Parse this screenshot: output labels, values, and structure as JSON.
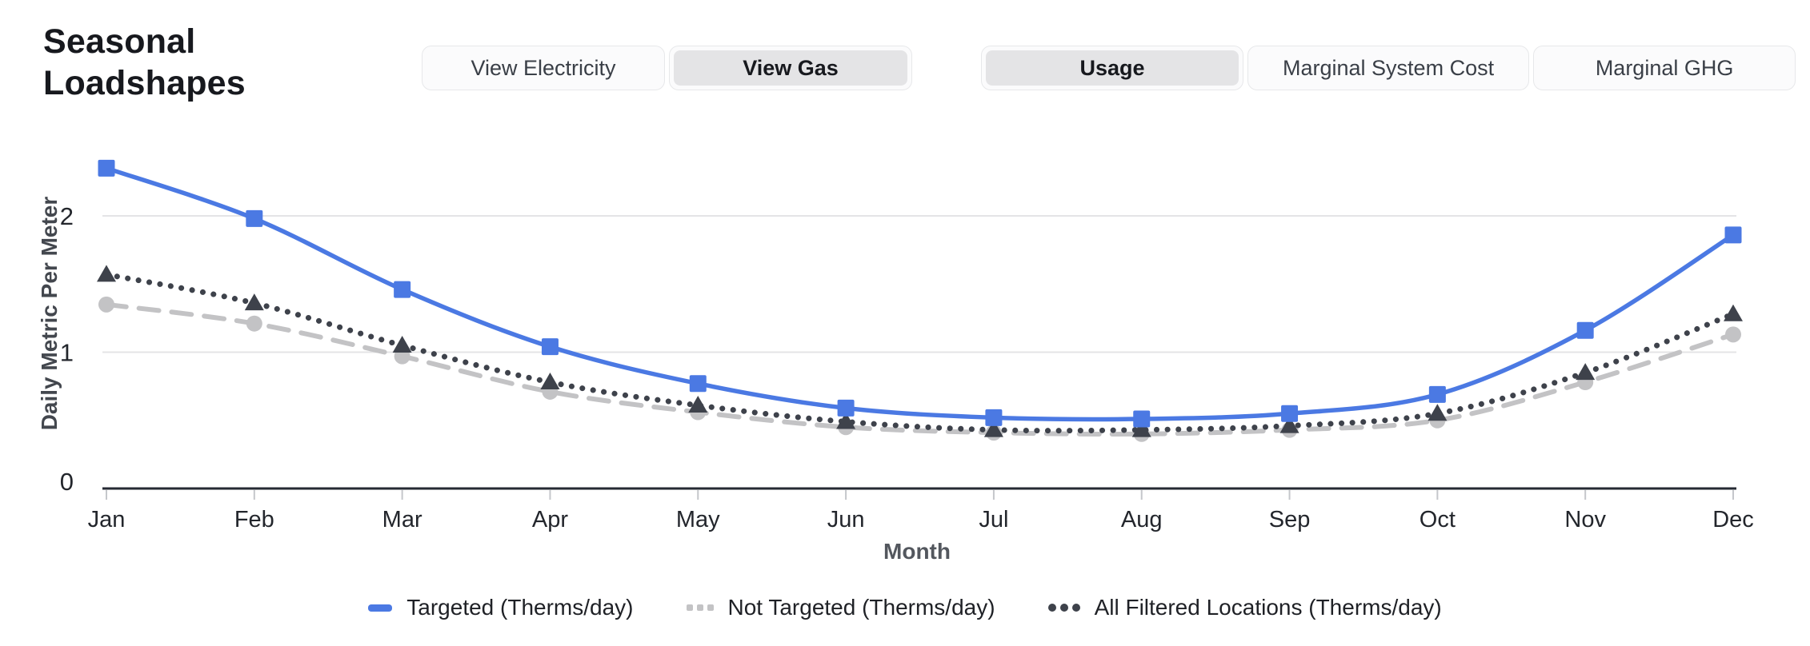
{
  "page": {
    "title": "Seasonal\nLoadshapes"
  },
  "toolbar": {
    "fuel_toggle": [
      {
        "label": "View Electricity",
        "selected": false
      },
      {
        "label": "View Gas",
        "selected": true
      }
    ],
    "metric_toggle": [
      {
        "label": "Usage",
        "selected": true
      },
      {
        "label": "Marginal System Cost",
        "selected": false
      },
      {
        "label": "Marginal GHG",
        "selected": false
      }
    ]
  },
  "chart_data": {
    "type": "line",
    "categories": [
      "Jan",
      "Feb",
      "Mar",
      "Apr",
      "May",
      "Jun",
      "Jul",
      "Aug",
      "Sep",
      "Oct",
      "Nov",
      "Dec"
    ],
    "xlabel": "Month",
    "ylabel": "Daily Metric Per Meter",
    "ylim": [
      0,
      2.5
    ],
    "yticks": [
      0,
      1,
      2
    ],
    "grid": "horizontal",
    "legend_position": "bottom",
    "series": [
      {
        "name": "Targeted (Therms/day)",
        "color": "#4b79e3",
        "line_style": "solid",
        "marker": "square",
        "values": [
          2.35,
          1.98,
          1.46,
          1.04,
          0.77,
          0.59,
          0.52,
          0.51,
          0.55,
          0.69,
          1.16,
          1.86
        ]
      },
      {
        "name": "Not Targeted (Therms/day)",
        "color": "#c3c3c5",
        "line_style": "dashed",
        "marker": "circle",
        "values": [
          1.35,
          1.21,
          0.97,
          0.71,
          0.56,
          0.45,
          0.41,
          0.4,
          0.43,
          0.5,
          0.78,
          1.13
        ]
      },
      {
        "name": "All Filtered Locations (Therms/day)",
        "color": "#3e424b",
        "line_style": "dotted",
        "marker": "triangle",
        "values": [
          1.57,
          1.36,
          1.05,
          0.78,
          0.61,
          0.49,
          0.43,
          0.43,
          0.46,
          0.55,
          0.85,
          1.28
        ]
      }
    ],
    "colors": {
      "axis_line": "#252a33",
      "gridline": "#e4e4e6",
      "tick": "#c5c7cb",
      "tick_label": "#23262c"
    }
  }
}
